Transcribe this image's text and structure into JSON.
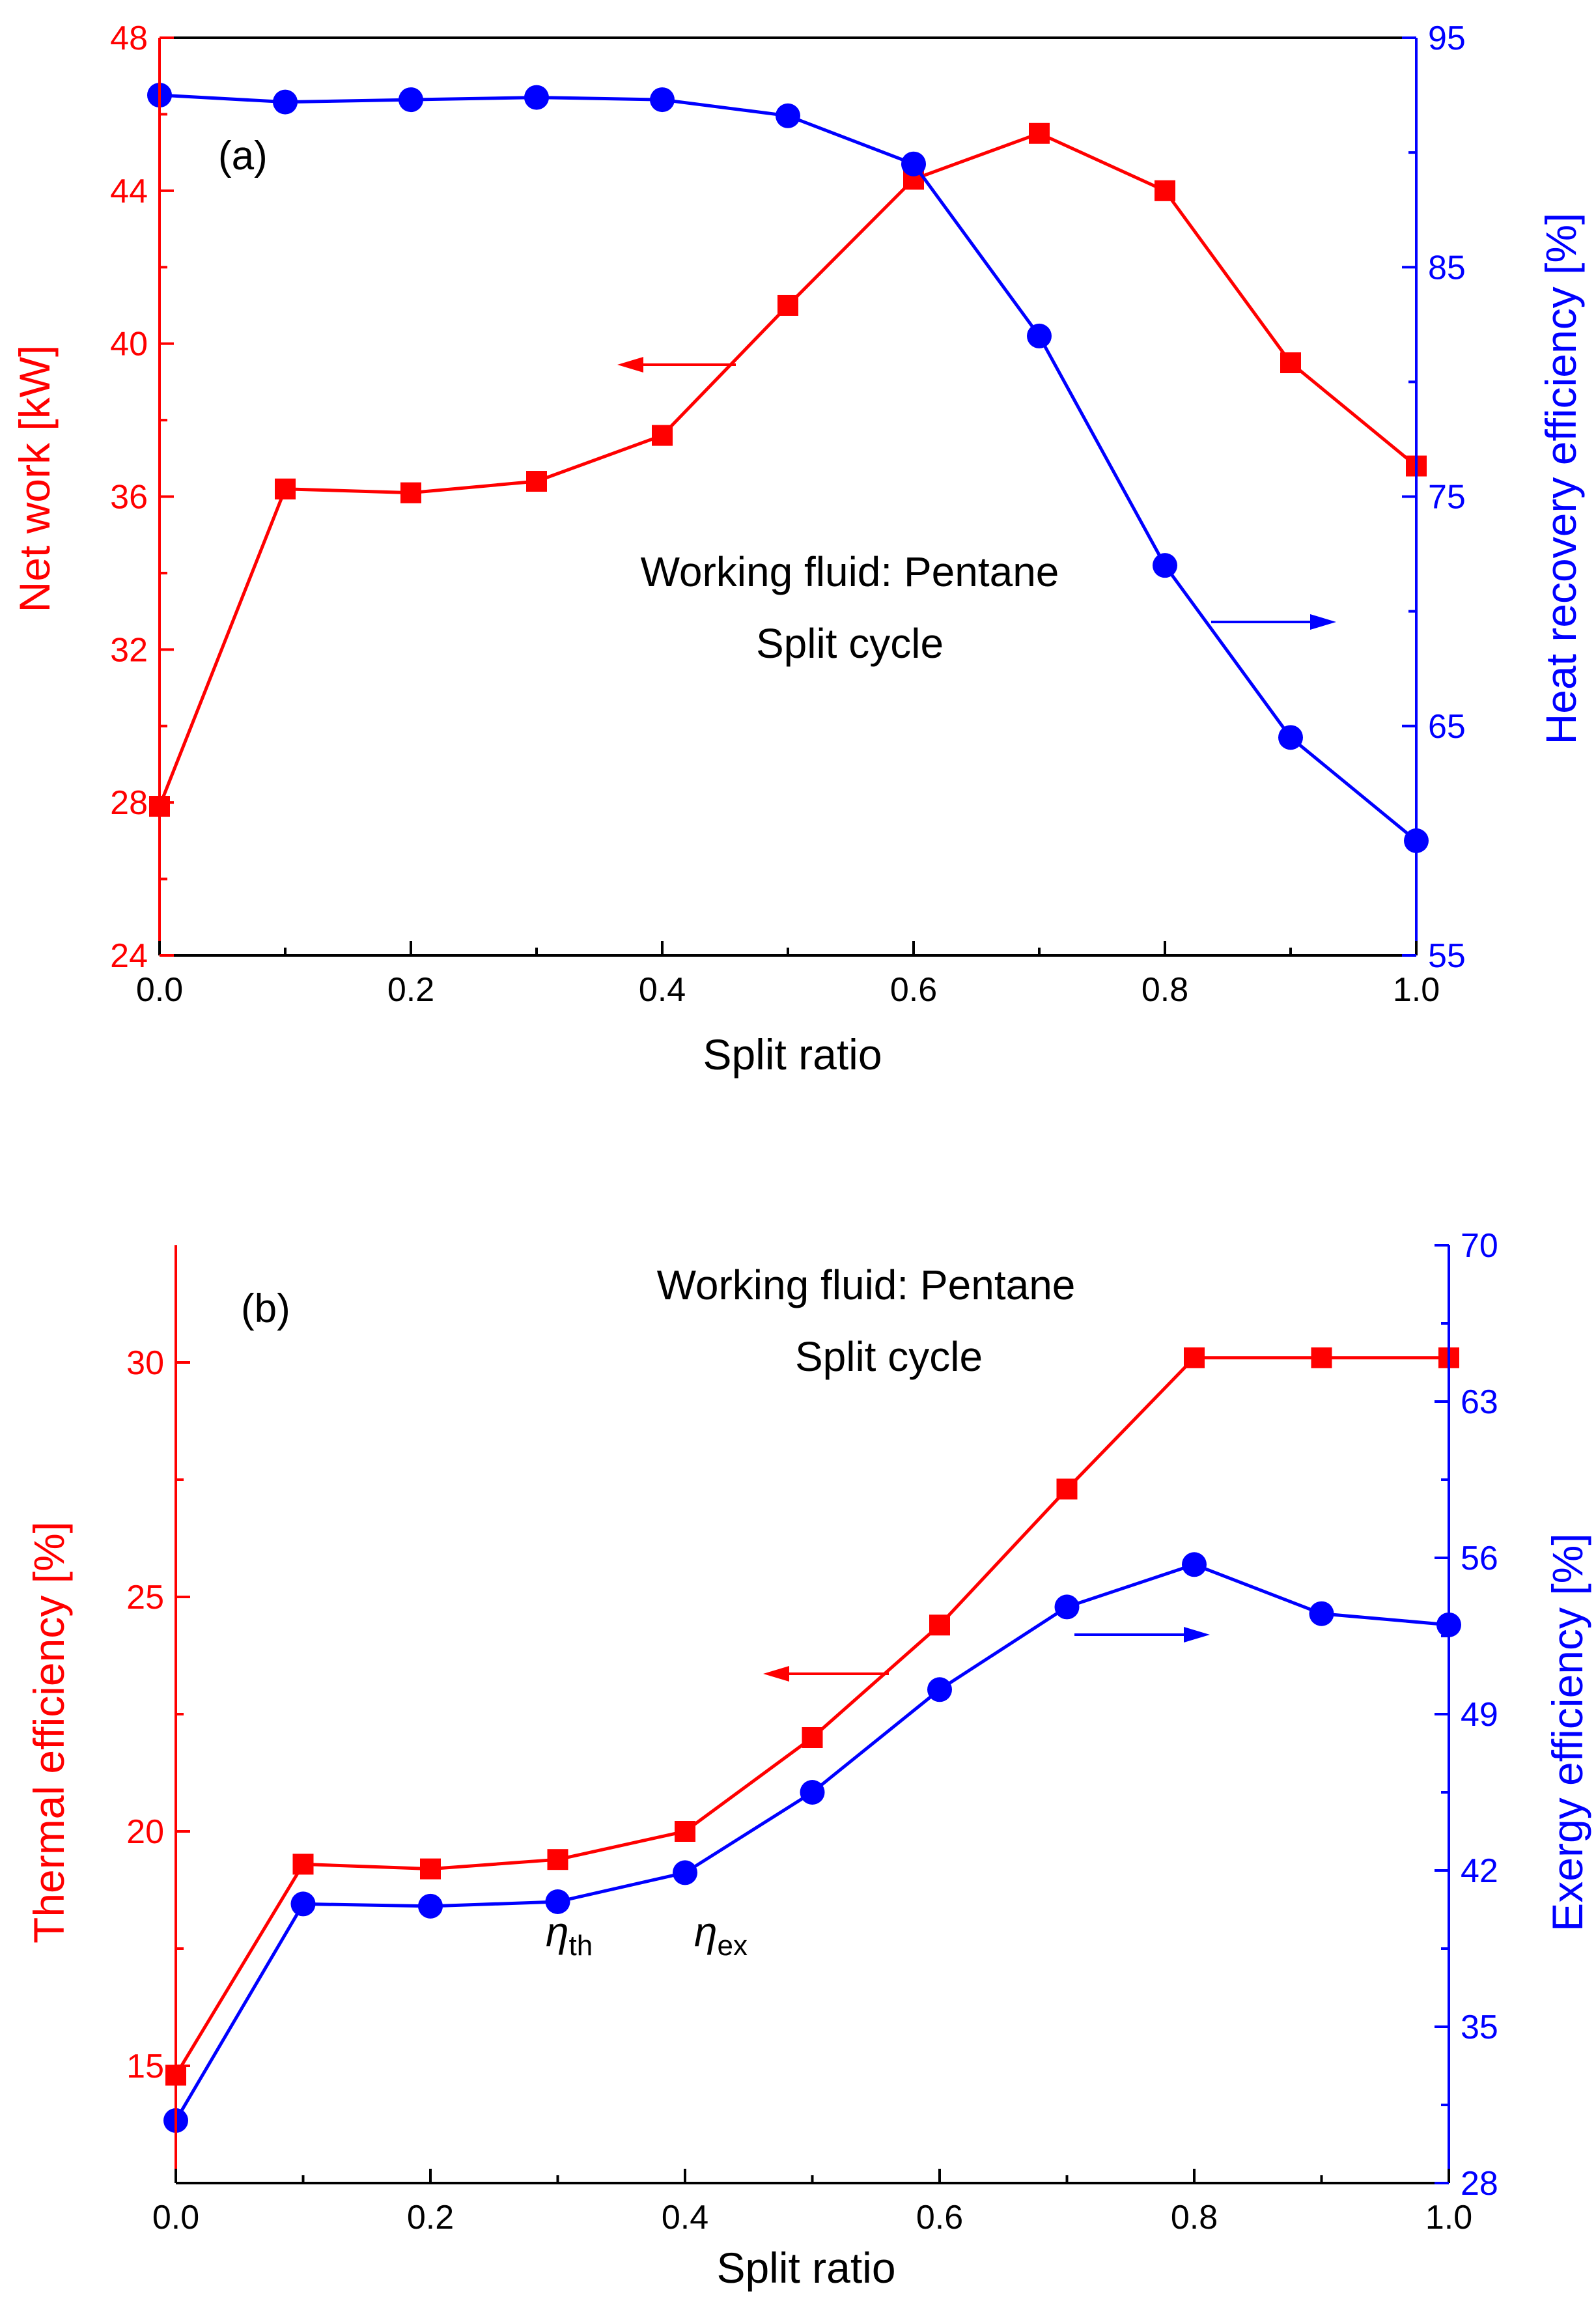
{
  "colors": {
    "left": "#ff0000",
    "right": "#0000ff",
    "axis": "#000000"
  },
  "chart_data": [
    {
      "type": "line",
      "panel_label": "(a)",
      "annotation_line1": "Working fluid: Pentane",
      "annotation_line2": "Split cycle",
      "xlabel": "Split ratio",
      "ylabel_left": "Net work [kW]",
      "ylabel_right": "Heat recovery efficiency [%]",
      "xlim": [
        0,
        1
      ],
      "ylim_left": [
        24,
        48
      ],
      "ylim_right": [
        55,
        95
      ],
      "xticks": [
        "0.0",
        "0.2",
        "0.4",
        "0.6",
        "0.8",
        "1.0"
      ],
      "yticks_left": [
        "24",
        "28",
        "32",
        "36",
        "40",
        "44",
        "48"
      ],
      "yticks_right": [
        "55",
        "65",
        "75",
        "85",
        "95"
      ],
      "x": [
        0.0,
        0.1,
        0.2,
        0.3,
        0.4,
        0.5,
        0.6,
        0.7,
        0.8,
        0.9,
        1.0
      ],
      "series": [
        {
          "name": "Net work",
          "axis": "left",
          "marker": "square",
          "values": [
            27.9,
            36.2,
            36.1,
            36.4,
            37.6,
            41.0,
            44.3,
            45.5,
            44.0,
            39.5,
            36.8
          ]
        },
        {
          "name": "Heat recovery efficiency",
          "axis": "right",
          "marker": "circle",
          "values": [
            92.5,
            92.2,
            92.3,
            92.4,
            92.3,
            91.6,
            89.5,
            82.0,
            72.0,
            64.5,
            60.0
          ]
        }
      ]
    },
    {
      "type": "line",
      "panel_label": "(b)",
      "annotation_line1": "Working fluid: Pentane",
      "annotation_line2": "Split cycle",
      "xlabel": "Split ratio",
      "ylabel_left": "Thermal efficiency [%]",
      "ylabel_right": "Exergy efficiency [%]",
      "xlim": [
        0,
        1
      ],
      "ylim_left": [
        12.5,
        32.5
      ],
      "ylim_right": [
        28,
        70
      ],
      "xticks": [
        "0.0",
        "0.2",
        "0.4",
        "0.6",
        "0.8",
        "1.0"
      ],
      "yticks_left": [
        "15",
        "20",
        "25",
        "30"
      ],
      "yticks_right": [
        "28",
        "35",
        "42",
        "49",
        "56",
        "63",
        "70"
      ],
      "eta_th": {
        "symbol": "η",
        "sub": "th"
      },
      "eta_ex": {
        "symbol": "η",
        "sub": "ex"
      },
      "x": [
        0.0,
        0.1,
        0.2,
        0.3,
        0.4,
        0.5,
        0.6,
        0.7,
        0.8,
        0.9,
        1.0
      ],
      "series": [
        {
          "name": "Thermal efficiency",
          "axis": "left",
          "marker": "square",
          "values": [
            14.8,
            19.3,
            19.2,
            19.4,
            20.0,
            22.0,
            24.4,
            27.3,
            30.1,
            30.1,
            30.1
          ]
        },
        {
          "name": "Exergy efficiency",
          "axis": "right",
          "marker": "circle",
          "values": [
            30.8,
            40.5,
            40.4,
            40.6,
            41.9,
            45.5,
            50.1,
            53.8,
            55.7,
            53.5,
            53.0
          ]
        }
      ]
    }
  ]
}
